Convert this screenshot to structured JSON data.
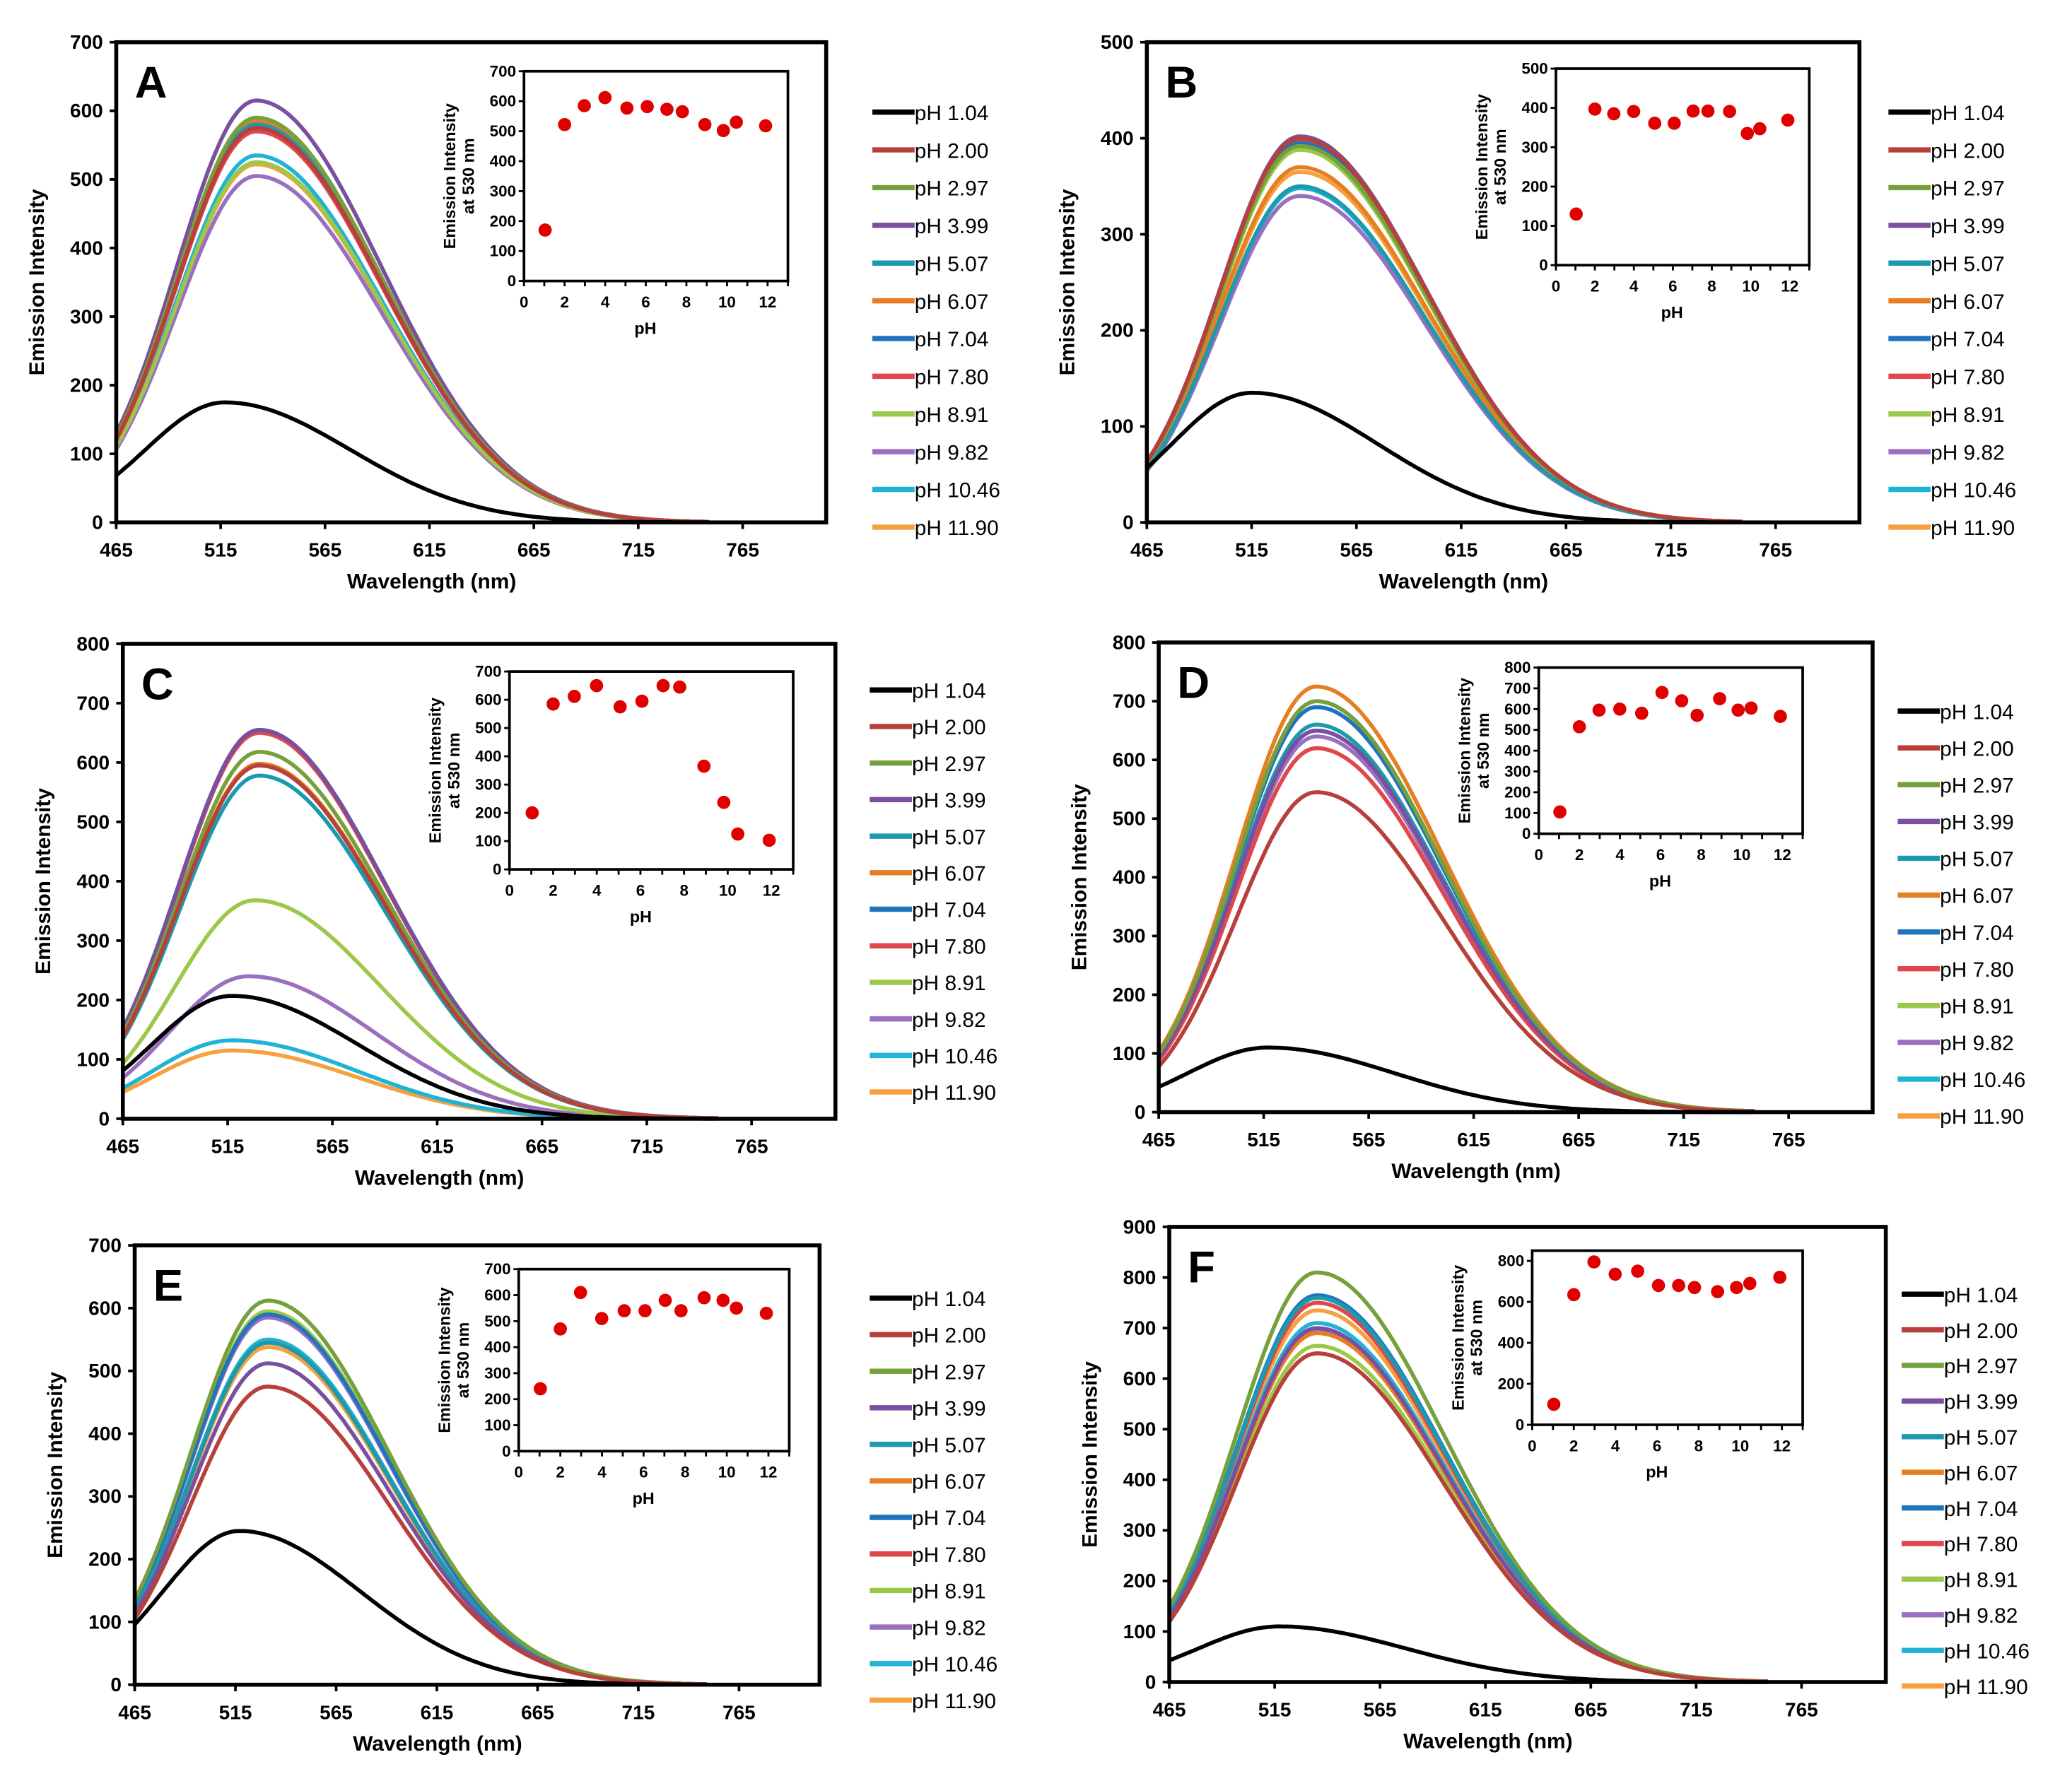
{
  "chart_data": [
    {
      "panel": "A",
      "type": "line",
      "xlabel": "Wavelength (nm)",
      "ylabel": "Emission Intensity",
      "xticks": [
        465,
        515,
        565,
        615,
        665,
        715,
        765
      ],
      "xlim": [
        465,
        805
      ],
      "yticks": [
        0,
        100,
        200,
        300,
        400,
        500,
        600,
        700
      ],
      "ylim": [
        0,
        700
      ],
      "series": [
        {
          "name": "pH 1.04",
          "color": "#000000",
          "peak_nm": 517,
          "peak_intensity": 175
        },
        {
          "name": "pH 2.00",
          "color": "#b7403a",
          "peak_nm": 532,
          "peak_intensity": 575
        },
        {
          "name": "pH 2.97",
          "color": "#76a03c",
          "peak_nm": 532,
          "peak_intensity": 590
        },
        {
          "name": "pH 3.99",
          "color": "#7a4f9e",
          "peak_nm": 532,
          "peak_intensity": 615
        },
        {
          "name": "pH 5.07",
          "color": "#1b9aae",
          "peak_nm": 532,
          "peak_intensity": 580
        },
        {
          "name": "pH 6.07",
          "color": "#e67e22",
          "peak_nm": 532,
          "peak_intensity": 585
        },
        {
          "name": "pH 7.04",
          "color": "#1f74bd",
          "peak_nm": 532,
          "peak_intensity": 578
        },
        {
          "name": "pH 7.80",
          "color": "#e0474c",
          "peak_nm": 532,
          "peak_intensity": 570
        },
        {
          "name": "pH 8.91",
          "color": "#9cc84a",
          "peak_nm": 532,
          "peak_intensity": 525
        },
        {
          "name": "pH 9.82",
          "color": "#9a6fc0",
          "peak_nm": 532,
          "peak_intensity": 505
        },
        {
          "name": "pH 10.46",
          "color": "#1fb3d6",
          "peak_nm": 532,
          "peak_intensity": 535
        },
        {
          "name": "pH 11.90",
          "color": "#f6a03f",
          "peak_nm": 532,
          "peak_intensity": 522
        }
      ],
      "inset": {
        "type": "scatter",
        "xlabel": "pH",
        "ylabel": [
          "Emission Intensity",
          "at 530 nm"
        ],
        "xticks": [
          0,
          2,
          4,
          6,
          8,
          10,
          12
        ],
        "xlim": [
          0,
          13
        ],
        "yticks": [
          0,
          100,
          200,
          300,
          400,
          500,
          600,
          700
        ],
        "ylim": [
          0,
          700
        ],
        "color": "#e00000",
        "x": [
          1.04,
          2.0,
          2.97,
          3.99,
          5.07,
          6.07,
          7.04,
          7.8,
          8.91,
          9.82,
          10.46,
          11.9
        ],
        "y": [
          170,
          522,
          585,
          612,
          577,
          582,
          573,
          565,
          522,
          502,
          530,
          518
        ]
      }
    },
    {
      "panel": "B",
      "type": "line",
      "xlabel": "Wavelength (nm)",
      "ylabel": "Emission Intensity",
      "xticks": [
        465,
        515,
        565,
        615,
        665,
        715,
        765
      ],
      "xlim": [
        465,
        805
      ],
      "yticks": [
        0,
        100,
        200,
        300,
        400,
        500
      ],
      "ylim": [
        0,
        500
      ],
      "series": [
        {
          "name": "pH 1.04",
          "color": "#000000",
          "peak_nm": 515,
          "peak_intensity": 135
        },
        {
          "name": "pH 2.00",
          "color": "#b7403a",
          "peak_nm": 538,
          "peak_intensity": 400
        },
        {
          "name": "pH 2.97",
          "color": "#76a03c",
          "peak_nm": 538,
          "peak_intensity": 392
        },
        {
          "name": "pH 3.99",
          "color": "#7a4f9e",
          "peak_nm": 538,
          "peak_intensity": 402
        },
        {
          "name": "pH 5.07",
          "color": "#1b9aae",
          "peak_nm": 538,
          "peak_intensity": 350
        },
        {
          "name": "pH 6.07",
          "color": "#e67e22",
          "peak_nm": 538,
          "peak_intensity": 370
        },
        {
          "name": "pH 7.04",
          "color": "#1f74bd",
          "peak_nm": 538,
          "peak_intensity": 395
        },
        {
          "name": "pH 7.80",
          "color": "#e0474c",
          "peak_nm": 538,
          "peak_intensity": 398
        },
        {
          "name": "pH 8.91",
          "color": "#9cc84a",
          "peak_nm": 538,
          "peak_intensity": 388
        },
        {
          "name": "pH 9.82",
          "color": "#9a6fc0",
          "peak_nm": 538,
          "peak_intensity": 340
        },
        {
          "name": "pH 10.46",
          "color": "#1fb3d6",
          "peak_nm": 538,
          "peak_intensity": 348
        },
        {
          "name": "pH 11.90",
          "color": "#f6a03f",
          "peak_nm": 538,
          "peak_intensity": 365
        }
      ],
      "inset": {
        "type": "scatter",
        "xlabel": "pH",
        "ylabel": [
          "Emission Intensity",
          "at 530 nm"
        ],
        "xticks": [
          0,
          2,
          4,
          6,
          8,
          10,
          12
        ],
        "xlim": [
          0,
          13
        ],
        "yticks": [
          0,
          100,
          200,
          300,
          400,
          500
        ],
        "ylim": [
          0,
          500
        ],
        "color": "#e00000",
        "x": [
          1.04,
          2.0,
          2.97,
          3.99,
          5.07,
          6.07,
          7.04,
          7.8,
          8.91,
          9.82,
          10.46,
          11.9
        ],
        "y": [
          130,
          397,
          385,
          391,
          361,
          361,
          392,
          392,
          391,
          335,
          347,
          369
        ]
      }
    },
    {
      "panel": "C",
      "type": "line",
      "xlabel": "Wavelength (nm)",
      "ylabel": "Emission Intensity",
      "xticks": [
        465,
        515,
        565,
        615,
        665,
        715,
        765
      ],
      "xlim": [
        465,
        805
      ],
      "yticks": [
        0,
        100,
        200,
        300,
        400,
        500,
        600,
        700,
        800
      ],
      "ylim": [
        0,
        800
      ],
      "series": [
        {
          "name": "pH 1.04",
          "color": "#000000",
          "peak_nm": 517,
          "peak_intensity": 207
        },
        {
          "name": "pH 2.00",
          "color": "#b7403a",
          "peak_nm": 530,
          "peak_intensity": 595
        },
        {
          "name": "pH 2.97",
          "color": "#76a03c",
          "peak_nm": 530,
          "peak_intensity": 618
        },
        {
          "name": "pH 3.99",
          "color": "#7a4f9e",
          "peak_nm": 530,
          "peak_intensity": 655
        },
        {
          "name": "pH 5.07",
          "color": "#1b9aae",
          "peak_nm": 530,
          "peak_intensity": 578
        },
        {
          "name": "pH 6.07",
          "color": "#e67e22",
          "peak_nm": 530,
          "peak_intensity": 598
        },
        {
          "name": "pH 7.04",
          "color": "#1f74bd",
          "peak_nm": 530,
          "peak_intensity": 655
        },
        {
          "name": "pH 7.80",
          "color": "#e0474c",
          "peak_nm": 530,
          "peak_intensity": 650
        },
        {
          "name": "pH 8.91",
          "color": "#9cc84a",
          "peak_nm": 528,
          "peak_intensity": 368
        },
        {
          "name": "pH 9.82",
          "color": "#9a6fc0",
          "peak_nm": 525,
          "peak_intensity": 240
        },
        {
          "name": "pH 10.46",
          "color": "#1fb3d6",
          "peak_nm": 517,
          "peak_intensity": 132
        },
        {
          "name": "pH 11.90",
          "color": "#f6a03f",
          "peak_nm": 517,
          "peak_intensity": 115
        }
      ],
      "inset": {
        "type": "scatter",
        "xlabel": "pH",
        "ylabel": [
          "Emission Intensity",
          "at 530 nm"
        ],
        "xticks": [
          0,
          2,
          4,
          6,
          8,
          10,
          12
        ],
        "xlim": [
          0,
          13
        ],
        "yticks": [
          0,
          100,
          200,
          300,
          400,
          500,
          600,
          700
        ],
        "ylim": [
          0,
          700
        ],
        "color": "#e00000",
        "x": [
          1.04,
          2.0,
          2.97,
          3.99,
          5.07,
          6.07,
          7.04,
          7.8,
          8.91,
          9.82,
          10.46,
          11.9
        ],
        "y": [
          200,
          585,
          612,
          650,
          575,
          595,
          650,
          645,
          365,
          237,
          125,
          103
        ]
      }
    },
    {
      "panel": "D",
      "type": "line",
      "xlabel": "Wavelength (nm)",
      "ylabel": "Emission Intensity",
      "xticks": [
        465,
        515,
        565,
        615,
        665,
        715,
        765
      ],
      "xlim": [
        465,
        805
      ],
      "yticks": [
        0,
        100,
        200,
        300,
        400,
        500,
        600,
        700,
        800
      ],
      "ylim": [
        0,
        800
      ],
      "series": [
        {
          "name": "pH 1.04",
          "color": "#000000",
          "peak_nm": 517,
          "peak_intensity": 110
        },
        {
          "name": "pH 2.00",
          "color": "#b7403a",
          "peak_nm": 540,
          "peak_intensity": 545
        },
        {
          "name": "pH 2.97",
          "color": "#76a03c",
          "peak_nm": 540,
          "peak_intensity": 700
        },
        {
          "name": "pH 3.99",
          "color": "#7a4f9e",
          "peak_nm": 540,
          "peak_intensity": 650
        },
        {
          "name": "pH 5.07",
          "color": "#1b9aae",
          "peak_nm": 540,
          "peak_intensity": 660
        },
        {
          "name": "pH 6.07",
          "color": "#e67e22",
          "peak_nm": 540,
          "peak_intensity": 725
        },
        {
          "name": "pH 7.04",
          "color": "#1f74bd",
          "peak_nm": 540,
          "peak_intensity": 690
        },
        {
          "name": "pH 7.80",
          "color": "#e0474c",
          "peak_nm": 540,
          "peak_intensity": 620
        },
        {
          "name": "pH 8.91",
          "color": "#9cc84a",
          "peak_nm": 540,
          "peak_intensity": 700
        },
        {
          "name": "pH 9.82",
          "color": "#9a6fc0",
          "peak_nm": 540,
          "peak_intensity": 640
        },
        {
          "name": "pH 10.46",
          "color": "#1fb3d6",
          "peak_nm": 540,
          "peak_intensity": 650
        },
        {
          "name": "pH 11.90",
          "color": "#f6a03f",
          "peak_nm": 540,
          "peak_intensity": 620
        }
      ],
      "inset": {
        "type": "scatter",
        "xlabel": "pH",
        "ylabel": [
          "Emission Intensity",
          "at 530 nm"
        ],
        "xticks": [
          0,
          2,
          4,
          6,
          8,
          10,
          12
        ],
        "xlim": [
          0,
          13
        ],
        "yticks": [
          0,
          100,
          200,
          300,
          400,
          500,
          600,
          700,
          800
        ],
        "ylim": [
          0,
          800
        ],
        "color": "#e00000",
        "x": [
          1.04,
          2.0,
          2.97,
          3.99,
          5.07,
          6.07,
          7.04,
          7.8,
          8.91,
          9.82,
          10.46,
          11.9
        ],
        "y": [
          105,
          515,
          595,
          600,
          580,
          680,
          640,
          570,
          650,
          595,
          605,
          565
        ]
      }
    },
    {
      "panel": "E",
      "type": "line",
      "xlabel": "Wavelength (nm)",
      "ylabel": "Emission Intensity",
      "xticks": [
        465,
        515,
        565,
        615,
        665,
        715,
        765
      ],
      "xlim": [
        465,
        805
      ],
      "yticks": [
        0,
        100,
        200,
        300,
        400,
        500,
        600,
        700
      ],
      "ylim": [
        0,
        700
      ],
      "series": [
        {
          "name": "pH 1.04",
          "color": "#000000",
          "peak_nm": 517,
          "peak_intensity": 245
        },
        {
          "name": "pH 2.00",
          "color": "#b7403a",
          "peak_nm": 531,
          "peak_intensity": 475
        },
        {
          "name": "pH 2.97",
          "color": "#76a03c",
          "peak_nm": 531,
          "peak_intensity": 612
        },
        {
          "name": "pH 3.99",
          "color": "#7a4f9e",
          "peak_nm": 531,
          "peak_intensity": 512
        },
        {
          "name": "pH 5.07",
          "color": "#1b9aae",
          "peak_nm": 531,
          "peak_intensity": 545
        },
        {
          "name": "pH 6.07",
          "color": "#e67e22",
          "peak_nm": 531,
          "peak_intensity": 545
        },
        {
          "name": "pH 7.04",
          "color": "#1f74bd",
          "peak_nm": 531,
          "peak_intensity": 590
        },
        {
          "name": "pH 7.80",
          "color": "#e0474c",
          "peak_nm": 531,
          "peak_intensity": 545
        },
        {
          "name": "pH 8.91",
          "color": "#9cc84a",
          "peak_nm": 531,
          "peak_intensity": 595
        },
        {
          "name": "pH 9.82",
          "color": "#9a6fc0",
          "peak_nm": 531,
          "peak_intensity": 585
        },
        {
          "name": "pH 10.46",
          "color": "#1fb3d6",
          "peak_nm": 531,
          "peak_intensity": 550
        },
        {
          "name": "pH 11.90",
          "color": "#f6a03f",
          "peak_nm": 531,
          "peak_intensity": 538
        }
      ],
      "inset": {
        "type": "scatter",
        "xlabel": "pH",
        "ylabel": [
          "Emission Intensity",
          "at 530 nm"
        ],
        "xticks": [
          0,
          2,
          4,
          6,
          8,
          10,
          12
        ],
        "xlim": [
          0,
          13
        ],
        "yticks": [
          0,
          100,
          200,
          300,
          400,
          500,
          600,
          700
        ],
        "ylim": [
          0,
          700
        ],
        "color": "#e00000",
        "x": [
          1.04,
          2.0,
          2.97,
          3.99,
          5.07,
          6.07,
          7.04,
          7.8,
          8.91,
          9.82,
          10.46,
          11.9
        ],
        "y": [
          240,
          470,
          610,
          510,
          540,
          540,
          580,
          540,
          590,
          580,
          550,
          530
        ]
      }
    },
    {
      "panel": "F",
      "type": "line",
      "xlabel": "Wavelength (nm)",
      "ylabel": "Emission Intensity",
      "xticks": [
        465,
        515,
        565,
        615,
        665,
        715,
        765
      ],
      "xlim": [
        465,
        805
      ],
      "yticks": [
        0,
        100,
        200,
        300,
        400,
        500,
        600,
        700,
        800,
        900
      ],
      "ylim": [
        0,
        900
      ],
      "series": [
        {
          "name": "pH 1.04",
          "color": "#000000",
          "peak_nm": 517,
          "peak_intensity": 110
        },
        {
          "name": "pH 2.00",
          "color": "#b7403a",
          "peak_nm": 535,
          "peak_intensity": 650
        },
        {
          "name": "pH 2.97",
          "color": "#76a03c",
          "peak_nm": 535,
          "peak_intensity": 810
        },
        {
          "name": "pH 3.99",
          "color": "#7a4f9e",
          "peak_nm": 535,
          "peak_intensity": 700
        },
        {
          "name": "pH 5.07",
          "color": "#1b9aae",
          "peak_nm": 535,
          "peak_intensity": 760
        },
        {
          "name": "pH 6.07",
          "color": "#e67e22",
          "peak_nm": 535,
          "peak_intensity": 690
        },
        {
          "name": "pH 7.04",
          "color": "#1f74bd",
          "peak_nm": 535,
          "peak_intensity": 765
        },
        {
          "name": "pH 7.80",
          "color": "#e0474c",
          "peak_nm": 535,
          "peak_intensity": 750
        },
        {
          "name": "pH 8.91",
          "color": "#9cc84a",
          "peak_nm": 535,
          "peak_intensity": 665
        },
        {
          "name": "pH 9.82",
          "color": "#9a6fc0",
          "peak_nm": 535,
          "peak_intensity": 695
        },
        {
          "name": "pH 10.46",
          "color": "#1fb3d6",
          "peak_nm": 535,
          "peak_intensity": 710
        },
        {
          "name": "pH 11.90",
          "color": "#f6a03f",
          "peak_nm": 535,
          "peak_intensity": 735
        }
      ],
      "inset": {
        "type": "scatter",
        "xlabel": "pH",
        "ylabel": [
          "Emission Intensity",
          "at 530 nm"
        ],
        "xticks": [
          0,
          2,
          4,
          6,
          8,
          10,
          12
        ],
        "xlim": [
          0,
          13
        ],
        "yticks": [
          0,
          200,
          400,
          600,
          800
        ],
        "ylim": [
          0,
          850
        ],
        "color": "#e00000",
        "x": [
          1.04,
          2.0,
          2.97,
          3.99,
          5.07,
          6.07,
          7.04,
          7.8,
          8.91,
          9.82,
          10.46,
          11.9
        ],
        "y": [
          100,
          635,
          795,
          735,
          750,
          680,
          680,
          670,
          650,
          670,
          690,
          720
        ]
      }
    }
  ]
}
